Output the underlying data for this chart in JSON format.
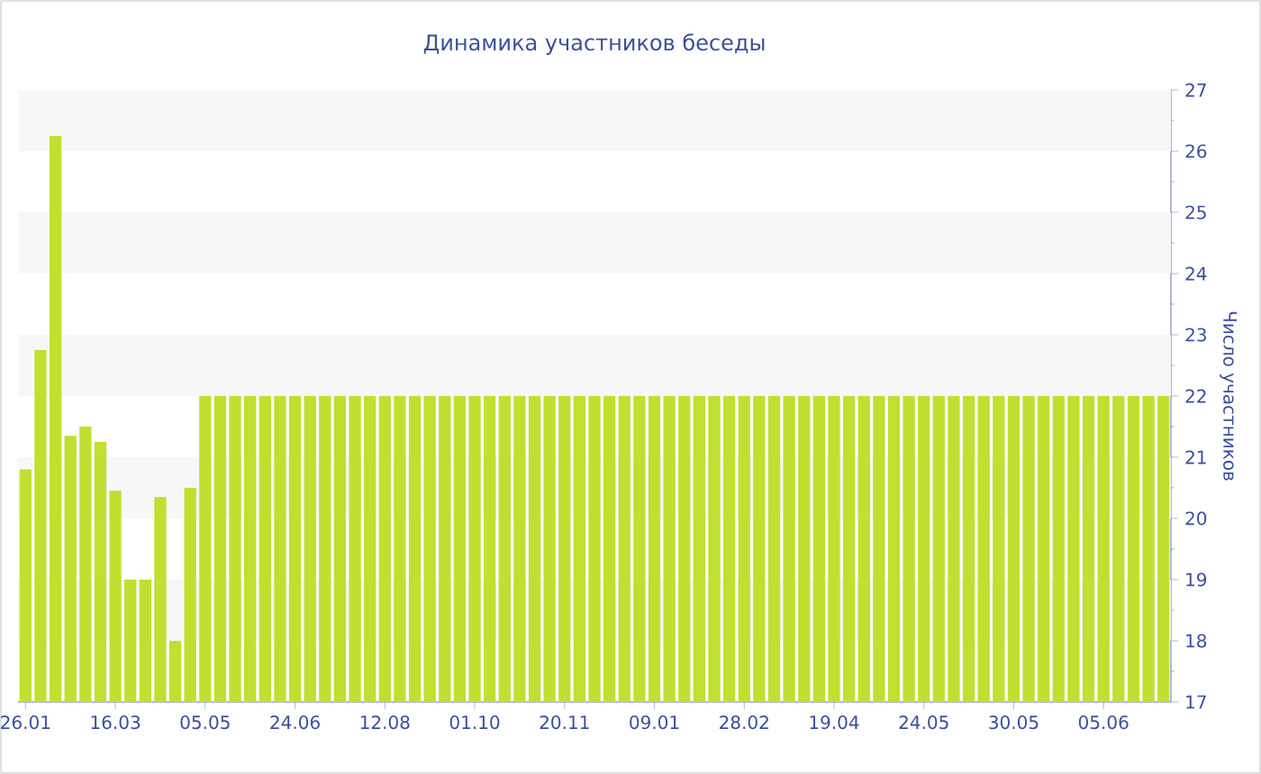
{
  "chart_data": {
    "type": "bar",
    "title": "Динамика участников беседы",
    "ylabel": "Число участников",
    "categories": [
      "26.01",
      null,
      null,
      null,
      null,
      null,
      "16.03",
      null,
      null,
      null,
      null,
      null,
      "05.05",
      null,
      null,
      null,
      null,
      null,
      "24.06",
      null,
      null,
      null,
      null,
      null,
      "12.08",
      null,
      null,
      null,
      null,
      null,
      "01.10",
      null,
      null,
      null,
      null,
      null,
      "20.11",
      null,
      null,
      null,
      null,
      null,
      "09.01",
      null,
      null,
      null,
      null,
      null,
      "28.02",
      null,
      null,
      null,
      null,
      null,
      "19.04",
      null,
      null,
      null,
      null,
      null,
      "24.05",
      null,
      null,
      null,
      null,
      null,
      "30.05",
      null,
      null,
      null,
      null,
      null,
      "05.06",
      null,
      null,
      null,
      null
    ],
    "values": [
      20.8,
      22.75,
      26.25,
      21.35,
      21.5,
      21.25,
      20.45,
      19,
      19,
      20.35,
      18,
      20.5,
      22,
      22,
      22,
      22,
      22,
      22,
      22,
      22,
      22,
      22,
      22,
      22,
      22,
      22,
      22,
      22,
      22,
      22,
      22,
      22,
      22,
      22,
      22,
      22,
      22,
      22,
      22,
      22,
      22,
      22,
      22,
      22,
      22,
      22,
      22,
      22,
      22,
      22,
      22,
      22,
      22,
      22,
      22,
      22,
      22,
      22,
      22,
      22,
      22,
      22,
      22,
      22,
      22,
      22,
      22,
      22,
      22,
      22,
      22,
      22,
      22,
      22,
      22,
      22,
      22
    ],
    "color": "#bfe030",
    "ylim": [
      17,
      27
    ],
    "yticks": [
      17,
      18,
      19,
      20,
      21,
      22,
      23,
      24,
      25,
      26,
      27
    ],
    "bands": [
      {
        "axis": "y",
        "from": 18,
        "to": 19,
        "color": "#f7f7f7"
      },
      {
        "axis": "y",
        "from": 20,
        "to": 21,
        "color": "#f7f7f7"
      },
      {
        "axis": "y",
        "from": 22,
        "to": 23,
        "color": "#f7f7f7"
      },
      {
        "axis": "y",
        "from": 24,
        "to": 25,
        "color": "#f7f7f7"
      },
      {
        "axis": "y",
        "from": 26,
        "to": 27,
        "color": "#f7f7f7"
      }
    ]
  }
}
